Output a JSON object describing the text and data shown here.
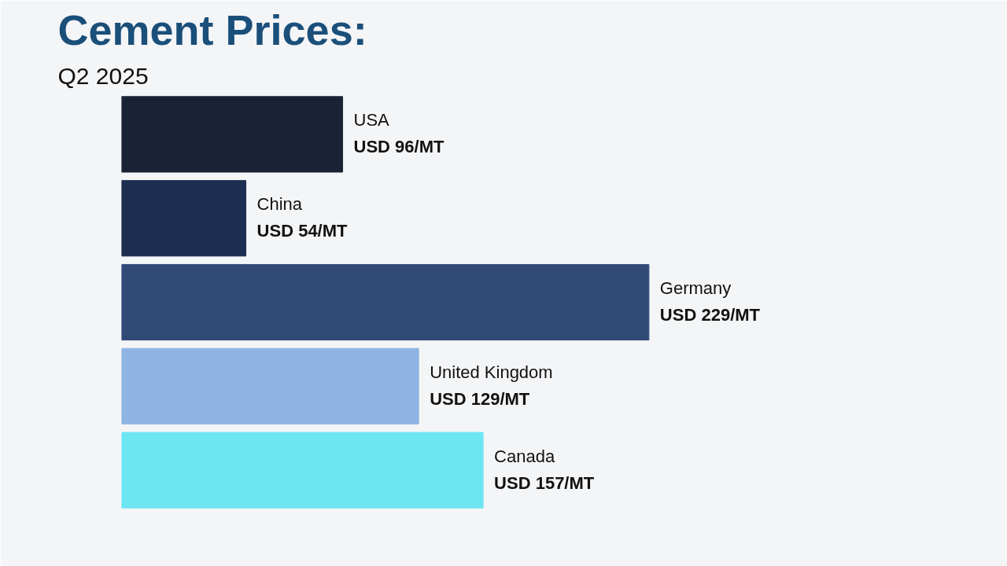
{
  "chart_data": {
    "type": "bar",
    "orientation": "horizontal",
    "title": "Cement Prices:",
    "subtitle": "Q2 2025",
    "categories": [
      "USA",
      "China",
      "Germany",
      "United Kingdom",
      "Canada"
    ],
    "values": [
      96,
      54,
      229,
      129,
      157
    ],
    "colors": [
      "#1a2235",
      "#1c2e4f",
      "#324a78",
      "#8eb4e3",
      "#6de6f4"
    ],
    "value_labels": [
      "USD 96/MT",
      "USD 54/MT",
      "USD 229/MT",
      "USD 129/MT",
      "USD 157/MT"
    ],
    "tick_labels": false,
    "grid": false
  }
}
